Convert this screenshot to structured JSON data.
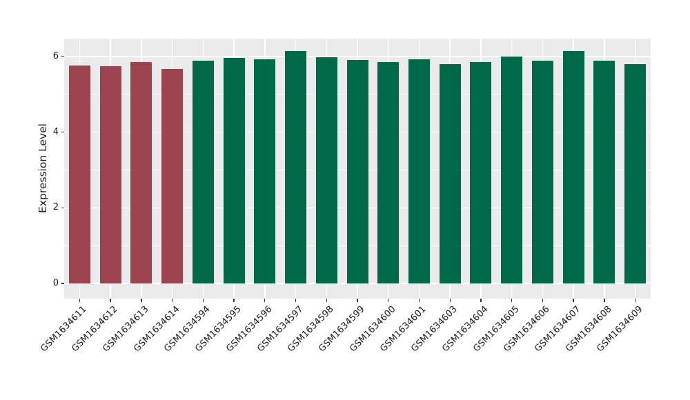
{
  "chart_data": {
    "type": "bar",
    "title": "",
    "xlabel": "",
    "ylabel": "Expression Level",
    "categories": [
      "GSM1634611",
      "GSM1634612",
      "GSM1634613",
      "GSM1634614",
      "GSM1634594",
      "GSM1634595",
      "GSM1634596",
      "GSM1634597",
      "GSM1634598",
      "GSM1634599",
      "GSM1634600",
      "GSM1634601",
      "GSM1634603",
      "GSM1634604",
      "GSM1634605",
      "GSM1634606",
      "GSM1634607",
      "GSM1634608",
      "GSM1634609"
    ],
    "values": [
      5.76,
      5.74,
      5.85,
      5.67,
      5.88,
      5.96,
      5.92,
      6.14,
      5.97,
      5.9,
      5.85,
      5.92,
      5.8,
      5.85,
      6.0,
      5.88,
      6.14,
      5.88,
      5.8
    ],
    "bar_colors": [
      "#9C4350",
      "#9C4350",
      "#9C4350",
      "#9C4350",
      "#006948",
      "#006948",
      "#006948",
      "#006948",
      "#006948",
      "#006948",
      "#006948",
      "#006948",
      "#006948",
      "#006948",
      "#006948",
      "#006948",
      "#006948",
      "#006948",
      "#006948"
    ],
    "groups": [
      {
        "name": "maroon-group",
        "color": "#9C4350",
        "categories": [
          "GSM1634611",
          "GSM1634612",
          "GSM1634613",
          "GSM1634614"
        ]
      },
      {
        "name": "green-group",
        "color": "#006948",
        "categories": [
          "GSM1634594",
          "GSM1634595",
          "GSM1634596",
          "GSM1634597",
          "GSM1634598",
          "GSM1634599",
          "GSM1634600",
          "GSM1634601",
          "GSM1634603",
          "GSM1634604",
          "GSM1634605",
          "GSM1634606",
          "GSM1634607",
          "GSM1634608",
          "GSM1634609"
        ]
      }
    ],
    "yticks": [
      0,
      2,
      4,
      6
    ],
    "minor_yticks": [
      1,
      3,
      5
    ],
    "ylim": [
      0,
      6.47
    ],
    "x_label_rotation_deg": 45,
    "legend": "none",
    "style": {
      "panel_bg": "#EBEBEB",
      "grid_color": "#FFFFFF",
      "tick_color": "#333333",
      "text_color": "#1a1a1a",
      "outer_bg": "#FFFFFF"
    }
  }
}
